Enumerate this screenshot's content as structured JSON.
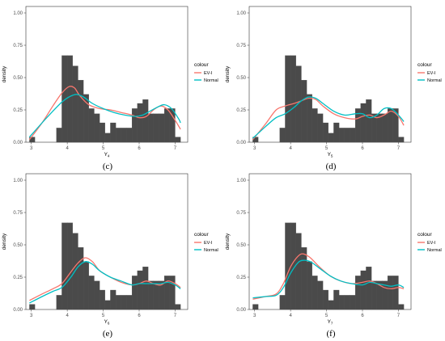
{
  "chart_data": [
    {
      "type": "bar",
      "caption": "(c)",
      "xlabel": "Y",
      "xlabel_sub": "4",
      "ylabel": "density",
      "xlim": [
        2.85,
        7.35
      ],
      "ylim": [
        0,
        1.05
      ],
      "xticks": [
        "3",
        "4",
        "5",
        "6",
        "7"
      ],
      "yticks": [
        "0.00",
        "0.25",
        "0.50",
        "0.75",
        "1.00"
      ],
      "legend": {
        "title": "colour",
        "position": "right",
        "entries": [
          {
            "label": "EV-I",
            "color": "#F8766D"
          },
          {
            "label": "Normal",
            "color": "#00BFC4"
          }
        ]
      },
      "histogram": {
        "bin_width": 0.15,
        "bins": [
          {
            "x0": 2.95,
            "d": 0.04
          },
          {
            "x0": 3.7,
            "d": 0.11
          },
          {
            "x0": 3.85,
            "d": 0.67
          },
          {
            "x0": 4.0,
            "d": 0.67
          },
          {
            "x0": 4.15,
            "d": 0.59
          },
          {
            "x0": 4.3,
            "d": 0.48
          },
          {
            "x0": 4.45,
            "d": 0.37
          },
          {
            "x0": 4.6,
            "d": 0.26
          },
          {
            "x0": 4.75,
            "d": 0.22
          },
          {
            "x0": 4.9,
            "d": 0.15
          },
          {
            "x0": 5.05,
            "d": 0.07
          },
          {
            "x0": 5.2,
            "d": 0.15
          },
          {
            "x0": 5.35,
            "d": 0.11
          },
          {
            "x0": 5.5,
            "d": 0.11
          },
          {
            "x0": 5.65,
            "d": 0.11
          },
          {
            "x0": 5.8,
            "d": 0.26
          },
          {
            "x0": 5.95,
            "d": 0.3
          },
          {
            "x0": 6.1,
            "d": 0.33
          },
          {
            "x0": 6.25,
            "d": 0.22
          },
          {
            "x0": 6.4,
            "d": 0.22
          },
          {
            "x0": 6.55,
            "d": 0.22
          },
          {
            "x0": 6.7,
            "d": 0.26
          },
          {
            "x0": 6.85,
            "d": 0.26
          },
          {
            "x0": 7.0,
            "d": 0.04
          }
        ]
      },
      "series": [
        {
          "name": "EV-I",
          "color": "#F8766D",
          "x": [
            2.95,
            3.3,
            3.6,
            3.85,
            4.05,
            4.2,
            4.35,
            4.6,
            4.9,
            5.2,
            5.5,
            5.8,
            6.0,
            6.2,
            6.4,
            6.6,
            6.8,
            7.0,
            7.15
          ],
          "y": [
            0.02,
            0.15,
            0.28,
            0.38,
            0.43,
            0.42,
            0.36,
            0.29,
            0.26,
            0.25,
            0.23,
            0.21,
            0.19,
            0.2,
            0.25,
            0.28,
            0.25,
            0.17,
            0.1
          ]
        },
        {
          "name": "Normal",
          "color": "#00BFC4",
          "x": [
            2.95,
            3.3,
            3.6,
            3.85,
            4.05,
            4.25,
            4.45,
            4.7,
            5.0,
            5.3,
            5.6,
            5.9,
            6.1,
            6.3,
            6.5,
            6.7,
            6.9,
            7.1,
            7.15
          ],
          "y": [
            0.04,
            0.15,
            0.24,
            0.31,
            0.35,
            0.37,
            0.35,
            0.3,
            0.26,
            0.23,
            0.21,
            0.2,
            0.21,
            0.24,
            0.27,
            0.29,
            0.26,
            0.18,
            0.15
          ]
        }
      ]
    },
    {
      "type": "bar",
      "caption": "(d)",
      "xlabel": "Y",
      "xlabel_sub": "5",
      "ylabel": "density",
      "xlim": [
        2.85,
        7.35
      ],
      "ylim": [
        0,
        1.05
      ],
      "xticks": [
        "3",
        "4",
        "5",
        "6",
        "7"
      ],
      "yticks": [
        "0.00",
        "0.25",
        "0.50",
        "0.75",
        "1.00"
      ],
      "legend": {
        "title": "colour",
        "position": "right",
        "entries": [
          {
            "label": "EV-I",
            "color": "#F8766D"
          },
          {
            "label": "Normal",
            "color": "#00BFC4"
          }
        ]
      },
      "histogram": {
        "bin_width": 0.15,
        "bins": [
          {
            "x0": 2.95,
            "d": 0.04
          },
          {
            "x0": 3.7,
            "d": 0.11
          },
          {
            "x0": 3.85,
            "d": 0.67
          },
          {
            "x0": 4.0,
            "d": 0.67
          },
          {
            "x0": 4.15,
            "d": 0.59
          },
          {
            "x0": 4.3,
            "d": 0.48
          },
          {
            "x0": 4.45,
            "d": 0.37
          },
          {
            "x0": 4.6,
            "d": 0.26
          },
          {
            "x0": 4.75,
            "d": 0.22
          },
          {
            "x0": 4.9,
            "d": 0.15
          },
          {
            "x0": 5.05,
            "d": 0.07
          },
          {
            "x0": 5.2,
            "d": 0.15
          },
          {
            "x0": 5.35,
            "d": 0.11
          },
          {
            "x0": 5.5,
            "d": 0.11
          },
          {
            "x0": 5.65,
            "d": 0.11
          },
          {
            "x0": 5.8,
            "d": 0.26
          },
          {
            "x0": 5.95,
            "d": 0.3
          },
          {
            "x0": 6.1,
            "d": 0.33
          },
          {
            "x0": 6.25,
            "d": 0.22
          },
          {
            "x0": 6.4,
            "d": 0.22
          },
          {
            "x0": 6.55,
            "d": 0.22
          },
          {
            "x0": 6.7,
            "d": 0.26
          },
          {
            "x0": 6.85,
            "d": 0.26
          },
          {
            "x0": 7.0,
            "d": 0.04
          }
        ]
      },
      "series": [
        {
          "name": "EV-I",
          "color": "#F8766D",
          "x": [
            2.95,
            3.3,
            3.6,
            3.85,
            4.1,
            4.3,
            4.5,
            4.7,
            4.9,
            5.2,
            5.5,
            5.8,
            6.0,
            6.2,
            6.4,
            6.6,
            6.8,
            7.0,
            7.15
          ],
          "y": [
            0.02,
            0.14,
            0.25,
            0.28,
            0.3,
            0.32,
            0.34,
            0.33,
            0.28,
            0.22,
            0.19,
            0.18,
            0.2,
            0.21,
            0.19,
            0.21,
            0.24,
            0.2,
            0.13
          ]
        },
        {
          "name": "Normal",
          "color": "#00BFC4",
          "x": [
            2.95,
            3.3,
            3.6,
            3.85,
            4.1,
            4.3,
            4.5,
            4.7,
            4.9,
            5.2,
            5.5,
            5.8,
            6.0,
            6.2,
            6.4,
            6.6,
            6.8,
            7.0,
            7.15
          ],
          "y": [
            0.03,
            0.12,
            0.19,
            0.22,
            0.27,
            0.32,
            0.35,
            0.34,
            0.3,
            0.24,
            0.21,
            0.22,
            0.22,
            0.19,
            0.21,
            0.26,
            0.26,
            0.21,
            0.16
          ]
        }
      ]
    },
    {
      "type": "bar",
      "caption": "(e)",
      "xlabel": "Y",
      "xlabel_sub": "6",
      "ylabel": "density",
      "xlim": [
        2.85,
        7.35
      ],
      "ylim": [
        0,
        1.05
      ],
      "xticks": [
        "3",
        "4",
        "5",
        "6",
        "7"
      ],
      "yticks": [
        "0.00",
        "0.25",
        "0.50",
        "0.75",
        "1.00"
      ],
      "legend": {
        "title": "colour",
        "position": "right",
        "entries": [
          {
            "label": "EV-I",
            "color": "#F8766D"
          },
          {
            "label": "Normal",
            "color": "#00BFC4"
          }
        ]
      },
      "histogram": {
        "bin_width": 0.15,
        "bins": [
          {
            "x0": 2.95,
            "d": 0.04
          },
          {
            "x0": 3.7,
            "d": 0.11
          },
          {
            "x0": 3.85,
            "d": 0.67
          },
          {
            "x0": 4.0,
            "d": 0.67
          },
          {
            "x0": 4.15,
            "d": 0.59
          },
          {
            "x0": 4.3,
            "d": 0.48
          },
          {
            "x0": 4.45,
            "d": 0.37
          },
          {
            "x0": 4.6,
            "d": 0.26
          },
          {
            "x0": 4.75,
            "d": 0.22
          },
          {
            "x0": 4.9,
            "d": 0.15
          },
          {
            "x0": 5.05,
            "d": 0.07
          },
          {
            "x0": 5.2,
            "d": 0.15
          },
          {
            "x0": 5.35,
            "d": 0.11
          },
          {
            "x0": 5.5,
            "d": 0.11
          },
          {
            "x0": 5.65,
            "d": 0.11
          },
          {
            "x0": 5.8,
            "d": 0.26
          },
          {
            "x0": 5.95,
            "d": 0.3
          },
          {
            "x0": 6.1,
            "d": 0.33
          },
          {
            "x0": 6.25,
            "d": 0.22
          },
          {
            "x0": 6.4,
            "d": 0.22
          },
          {
            "x0": 6.55,
            "d": 0.22
          },
          {
            "x0": 6.7,
            "d": 0.26
          },
          {
            "x0": 6.85,
            "d": 0.26
          },
          {
            "x0": 7.0,
            "d": 0.04
          }
        ]
      },
      "series": [
        {
          "name": "EV-I",
          "color": "#F8766D",
          "x": [
            2.95,
            3.3,
            3.6,
            3.85,
            4.1,
            4.3,
            4.5,
            4.7,
            4.9,
            5.2,
            5.5,
            5.8,
            6.0,
            6.2,
            6.4,
            6.6,
            6.8,
            7.0,
            7.15
          ],
          "y": [
            0.07,
            0.12,
            0.16,
            0.2,
            0.29,
            0.36,
            0.4,
            0.37,
            0.3,
            0.25,
            0.21,
            0.19,
            0.2,
            0.22,
            0.2,
            0.19,
            0.22,
            0.2,
            0.17
          ]
        },
        {
          "name": "Normal",
          "color": "#00BFC4",
          "x": [
            2.95,
            3.3,
            3.6,
            3.85,
            4.1,
            4.3,
            4.5,
            4.7,
            4.9,
            5.2,
            5.5,
            5.8,
            6.0,
            6.2,
            6.4,
            6.6,
            6.8,
            7.0,
            7.15
          ],
          "y": [
            0.05,
            0.1,
            0.14,
            0.17,
            0.25,
            0.33,
            0.37,
            0.35,
            0.3,
            0.25,
            0.22,
            0.19,
            0.2,
            0.2,
            0.2,
            0.2,
            0.21,
            0.19,
            0.16
          ]
        }
      ]
    },
    {
      "type": "bar",
      "caption": "(f)",
      "xlabel": "Y",
      "xlabel_sub": "7",
      "ylabel": "density",
      "xlim": [
        2.85,
        7.35
      ],
      "ylim": [
        0,
        1.05
      ],
      "xticks": [
        "3",
        "4",
        "5",
        "6",
        "7"
      ],
      "yticks": [
        "0.00",
        "0.25",
        "0.50",
        "0.75",
        "1.00"
      ],
      "legend": {
        "title": "colour",
        "position": "right",
        "entries": [
          {
            "label": "EV-I",
            "color": "#F8766D"
          },
          {
            "label": "Normal",
            "color": "#00BFC4"
          }
        ]
      },
      "histogram": {
        "bin_width": 0.15,
        "bins": [
          {
            "x0": 2.95,
            "d": 0.04
          },
          {
            "x0": 3.7,
            "d": 0.11
          },
          {
            "x0": 3.85,
            "d": 0.67
          },
          {
            "x0": 4.0,
            "d": 0.67
          },
          {
            "x0": 4.15,
            "d": 0.59
          },
          {
            "x0": 4.3,
            "d": 0.48
          },
          {
            "x0": 4.45,
            "d": 0.37
          },
          {
            "x0": 4.6,
            "d": 0.26
          },
          {
            "x0": 4.75,
            "d": 0.22
          },
          {
            "x0": 4.9,
            "d": 0.15
          },
          {
            "x0": 5.05,
            "d": 0.07
          },
          {
            "x0": 5.2,
            "d": 0.15
          },
          {
            "x0": 5.35,
            "d": 0.11
          },
          {
            "x0": 5.5,
            "d": 0.11
          },
          {
            "x0": 5.65,
            "d": 0.11
          },
          {
            "x0": 5.8,
            "d": 0.26
          },
          {
            "x0": 5.95,
            "d": 0.3
          },
          {
            "x0": 6.1,
            "d": 0.33
          },
          {
            "x0": 6.25,
            "d": 0.22
          },
          {
            "x0": 6.4,
            "d": 0.22
          },
          {
            "x0": 6.55,
            "d": 0.22
          },
          {
            "x0": 6.7,
            "d": 0.26
          },
          {
            "x0": 6.85,
            "d": 0.26
          },
          {
            "x0": 7.0,
            "d": 0.04
          }
        ]
      },
      "series": [
        {
          "name": "EV-I",
          "color": "#F8766D",
          "x": [
            2.95,
            3.3,
            3.6,
            3.8,
            4.0,
            4.2,
            4.35,
            4.55,
            4.8,
            5.1,
            5.4,
            5.7,
            6.0,
            6.2,
            6.4,
            6.6,
            6.8,
            7.0,
            7.15
          ],
          "y": [
            0.08,
            0.1,
            0.12,
            0.2,
            0.33,
            0.41,
            0.43,
            0.4,
            0.33,
            0.26,
            0.22,
            0.2,
            0.21,
            0.22,
            0.2,
            0.17,
            0.16,
            0.17,
            0.16
          ]
        },
        {
          "name": "Normal",
          "color": "#00BFC4",
          "x": [
            2.95,
            3.3,
            3.6,
            3.8,
            4.0,
            4.2,
            4.35,
            4.55,
            4.8,
            5.1,
            5.4,
            5.7,
            6.0,
            6.2,
            6.4,
            6.6,
            6.8,
            7.0,
            7.15
          ],
          "y": [
            0.09,
            0.1,
            0.11,
            0.17,
            0.28,
            0.36,
            0.38,
            0.37,
            0.32,
            0.26,
            0.22,
            0.2,
            0.19,
            0.21,
            0.2,
            0.19,
            0.18,
            0.19,
            0.17
          ]
        }
      ]
    }
  ]
}
